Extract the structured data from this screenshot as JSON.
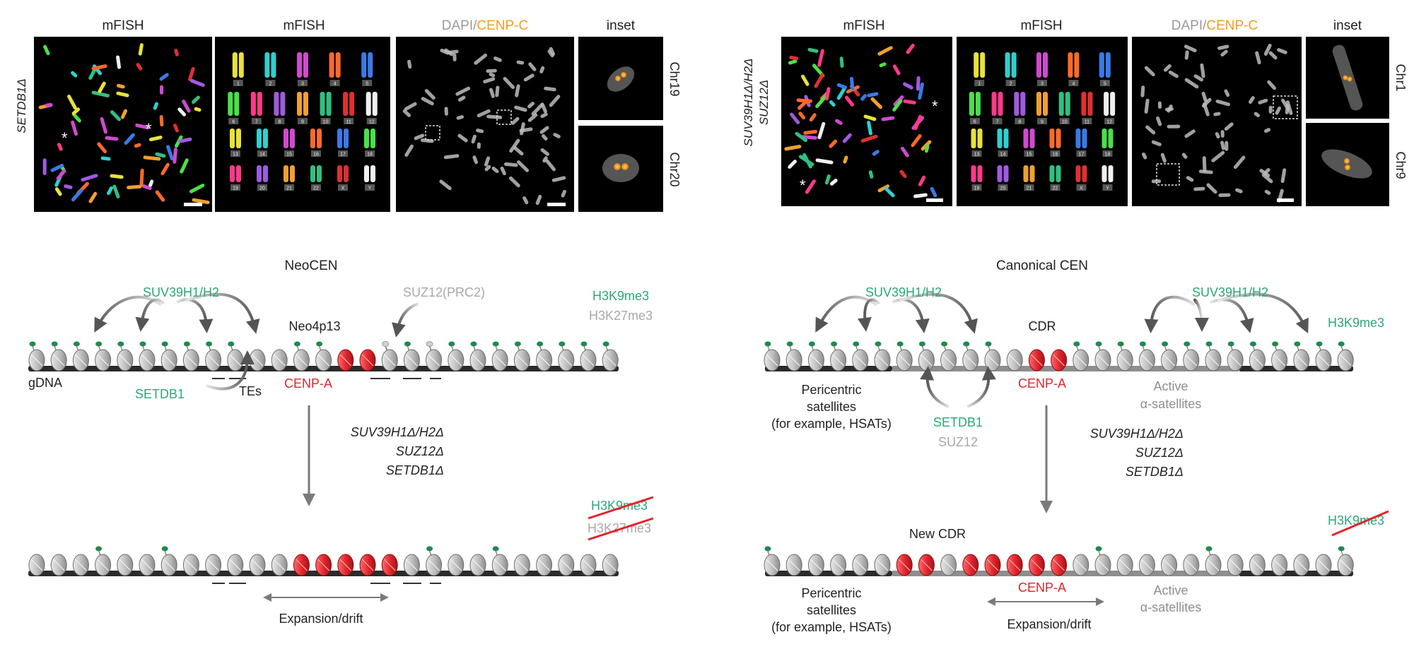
{
  "colors": {
    "green": "#2aa876",
    "red": "#e0242b",
    "grey_text": "#a8a8a8",
    "dark": "#2b2b2b",
    "orange": "#f39c1f",
    "arrow": "#7a7a7a"
  },
  "top_left": {
    "row_label": "SETDB1Δ",
    "panel1_title": "mFISH",
    "panel2_title": "mFISH",
    "panel3_title_a": "DAPI",
    "panel3_title_sep": "/",
    "panel3_title_b": "CENP-C",
    "panel4_title": "inset",
    "inset1_label": "Chr19",
    "inset2_label": "Chr20",
    "karyotype_numbers": [
      "1",
      "2",
      "3",
      "4",
      "5",
      "6",
      "7",
      "8",
      "9",
      "10",
      "11",
      "12",
      "13",
      "14",
      "15",
      "16",
      "17",
      "18",
      "19",
      "20",
      "21",
      "22",
      "X",
      "Y"
    ]
  },
  "top_right": {
    "row_label_line1": "SUV39H1Δ/H2Δ",
    "row_label_line2": "SUZ12Δ",
    "panel1_title": "mFISH",
    "panel2_title": "mFISH",
    "panel3_title_a": "DAPI",
    "panel3_title_sep": "/",
    "panel3_title_b": "CENP-C",
    "panel4_title": "inset",
    "inset1_label": "Chr1",
    "inset2_label": "Chr9",
    "karyotype_numbers": [
      "1",
      "2",
      "3",
      "4",
      "5",
      "6",
      "7",
      "8",
      "9",
      "10",
      "11",
      "12",
      "13",
      "14",
      "15",
      "16",
      "17",
      "18",
      "19",
      "20",
      "21",
      "22",
      "X",
      "Y"
    ]
  },
  "neocen": {
    "title": "NeoCEN",
    "suv_label": "SUV39H1/H2",
    "suz_label": "SUZ12(PRC2)",
    "h3k9": "H3K9me3",
    "h3k27": "H3K27me3",
    "locus": "Neo4p13",
    "gdna": "gDNA",
    "setdb1": "SETDB1",
    "tes": "TEs",
    "cenpa": "CENP-A",
    "mut1": "SUV39H1Δ/H2Δ",
    "mut2": "SUZ12Δ",
    "mut3": "SETDB1Δ",
    "h3k9_struck": "H3K9me3",
    "h3k27_struck": "H3K27me3",
    "expansion": "Expansion/drift"
  },
  "canon": {
    "title": "Canonical CEN",
    "suv_left": "SUV39H1/H2",
    "suv_right": "SUV39H1/H2",
    "cdr": "CDR",
    "h3k9": "H3K9me3",
    "peri1": "Pericentric",
    "peri2": "satellites",
    "peri3": "(for example, HSATs)",
    "setdb1": "SETDB1",
    "suz12": "SUZ12",
    "cenpa": "CENP-A",
    "active1": "Active",
    "active2": "α-satellites",
    "mut1": "SUV39H1Δ/H2Δ",
    "mut2": "SUZ12Δ",
    "mut3": "SETDB1Δ",
    "new_cdr": "New CDR",
    "h3k9_struck": "H3K9me3",
    "peri1b": "Pericentric",
    "peri2b": "satellites",
    "peri3b": "(for example, HSATs)",
    "cenpa_b": "CENP-A",
    "active1b": "Active",
    "active2b": "α-satellites",
    "expansion": "Expansion/drift"
  }
}
